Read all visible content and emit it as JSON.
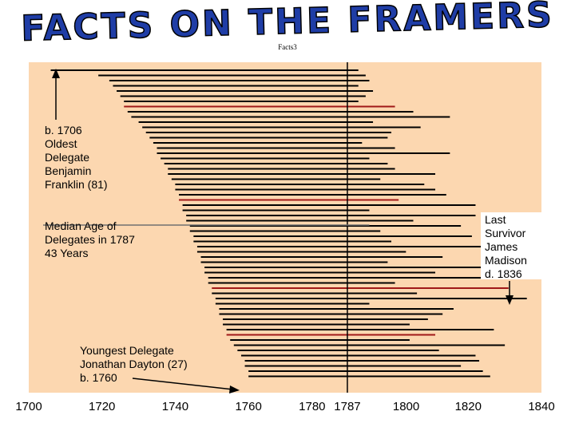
{
  "page": {
    "title": "FACTS ON THE FRAMERS",
    "subtitle": "Facts3"
  },
  "colors": {
    "panel": "#fcd7b0",
    "line": "#000000",
    "accent_line": "#a01818",
    "median_line": "#707070",
    "title_fill": "#1f3da6"
  },
  "chart_data": {
    "type": "lifespan_bars",
    "title": "FACTS ON THE FRAMERS",
    "xlim": [
      1700,
      1840
    ],
    "xticks": [
      1700,
      1720,
      1740,
      1760,
      1780,
      1787,
      1800,
      1820,
      1840
    ],
    "reference_year": 1787,
    "median_age": 43,
    "lifespans": [
      {
        "born": 1706,
        "died": 1790
      },
      {
        "born": 1719,
        "died": 1792
      },
      {
        "born": 1722,
        "died": 1793
      },
      {
        "born": 1723,
        "died": 1790
      },
      {
        "born": 1724,
        "died": 1794
      },
      {
        "born": 1725,
        "died": 1792
      },
      {
        "born": 1726,
        "died": 1790
      },
      {
        "born": 1726,
        "died": 1800,
        "accent": true
      },
      {
        "born": 1727,
        "died": 1805
      },
      {
        "born": 1728,
        "died": 1815
      },
      {
        "born": 1730,
        "died": 1794
      },
      {
        "born": 1731,
        "died": 1807
      },
      {
        "box": 1732,
        "born": 1732,
        "died": 1799
      },
      {
        "born": 1733,
        "died": 1798
      },
      {
        "born": 1734,
        "died": 1791
      },
      {
        "born": 1735,
        "died": 1800
      },
      {
        "born": 1735,
        "died": 1815
      },
      {
        "born": 1736,
        "died": 1793
      },
      {
        "born": 1737,
        "died": 1798
      },
      {
        "born": 1738,
        "died": 1800
      },
      {
        "born": 1738,
        "died": 1811
      },
      {
        "born": 1739,
        "died": 1796
      },
      {
        "born": 1740,
        "died": 1808
      },
      {
        "born": 1740,
        "died": 1811
      },
      {
        "born": 1741,
        "died": 1814
      },
      {
        "born": 1741,
        "died": 1801,
        "accent": true
      },
      {
        "born": 1742,
        "died": 1822
      },
      {
        "born": 1742,
        "died": 1793
      },
      {
        "born": 1743,
        "died": 1822
      },
      {
        "born": 1743,
        "died": 1805
      },
      {
        "born": 1744,
        "died": 1818
      },
      {
        "born": 1744,
        "died": 1796
      },
      {
        "born": 1745,
        "died": 1821
      },
      {
        "born": 1745,
        "died": 1799
      },
      {
        "born": 1746,
        "died": 1824
      },
      {
        "born": 1746,
        "died": 1803
      },
      {
        "born": 1747,
        "died": 1813
      },
      {
        "born": 1747,
        "died": 1798
      },
      {
        "born": 1748,
        "died": 1824
      },
      {
        "born": 1748,
        "died": 1811
      },
      {
        "born": 1749,
        "died": 1826
      },
      {
        "born": 1749,
        "died": 1800
      },
      {
        "born": 1750,
        "died": 1831,
        "accent": true
      },
      {
        "born": 1750,
        "died": 1806
      },
      {
        "born": 1751,
        "died": 1836
      },
      {
        "born": 1751,
        "died": 1793
      },
      {
        "born": 1752,
        "died": 1816
      },
      {
        "born": 1752,
        "died": 1813
      },
      {
        "born": 1753,
        "died": 1809
      },
      {
        "born": 1753,
        "died": 1804
      },
      {
        "born": 1754,
        "died": 1827
      },
      {
        "born": 1754,
        "died": 1811,
        "accent": true
      },
      {
        "born": 1755,
        "died": 1804
      },
      {
        "born": 1756,
        "died": 1830
      },
      {
        "born": 1757,
        "died": 1812
      },
      {
        "born": 1758,
        "died": 1822
      },
      {
        "born": 1759,
        "died": 1823
      },
      {
        "born": 1759,
        "died": 1818
      },
      {
        "born": 1760,
        "died": 1824
      },
      {
        "born": 1760,
        "died": 1826
      }
    ],
    "annotations": {
      "oldest": [
        "b. 1706",
        "Oldest",
        "Delegate",
        "Benjamin",
        "Franklin (81)"
      ],
      "median": [
        "Median Age of",
        "Delegates in 1787",
        "43 Years"
      ],
      "survivor": [
        "Last",
        "Survivor",
        "James",
        "Madison",
        "d. 1836"
      ],
      "youngest": [
        "Youngest Delegate",
        "Jonathan Dayton (27)",
        "b. 1760"
      ]
    }
  }
}
